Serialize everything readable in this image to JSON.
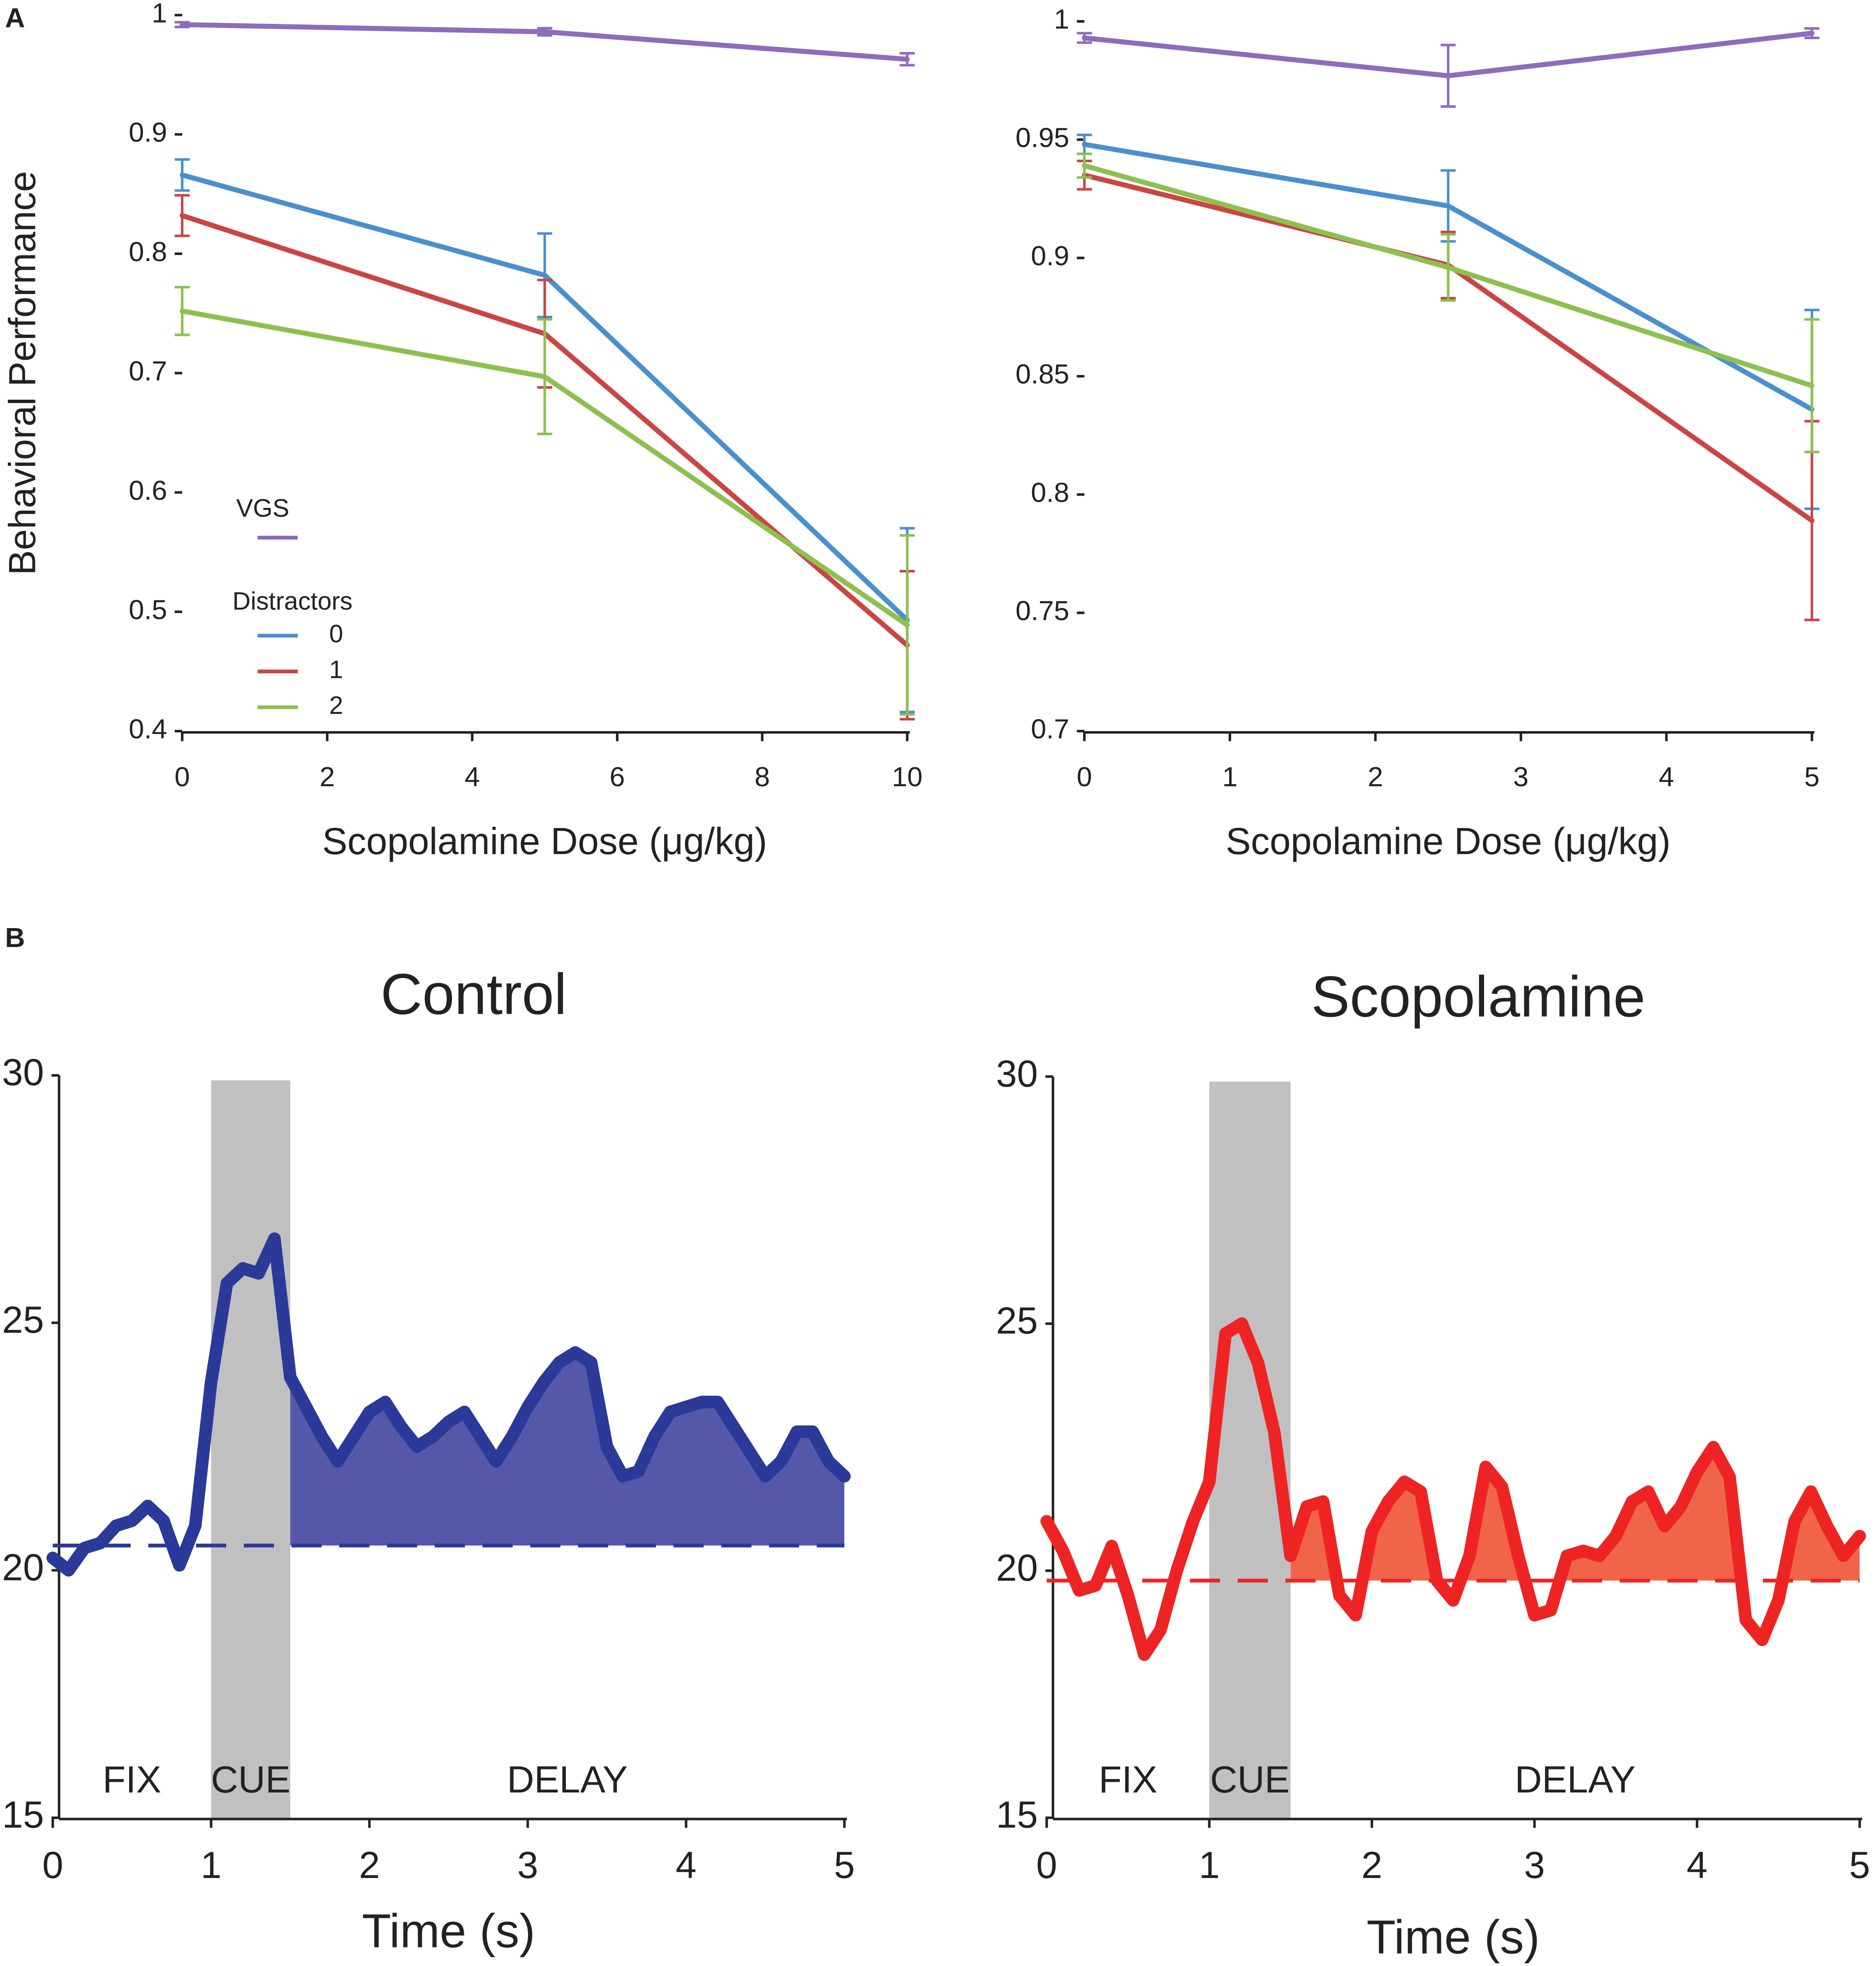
{
  "panel_labels": [
    "A",
    "B"
  ],
  "chart_data": [
    {
      "type": "line",
      "ylabel": "Behavioral Performance",
      "xlabel": "Scopolamine Dose (μg/kg)",
      "x": [
        0,
        5,
        10
      ],
      "xlim": [
        0,
        10
      ],
      "xticks": [
        0,
        2,
        4,
        6,
        8,
        10
      ],
      "ylim": [
        0.4,
        1
      ],
      "yticks": [
        0.4,
        0.5,
        0.6,
        0.7,
        0.8,
        0.9,
        1
      ],
      "legend": "lower left",
      "legend_title": "Distractors",
      "series": [
        {
          "name": "VGS",
          "color": "#8e6bbf",
          "values": [
            0.992,
            0.986,
            0.963
          ],
          "errors": [
            0.002,
            0.003,
            0.005
          ]
        },
        {
          "name": "0",
          "color": "#4a8fd0",
          "values": [
            0.866,
            0.782,
            0.493
          ],
          "errors": [
            0.013,
            0.035,
            0.077
          ]
        },
        {
          "name": "1",
          "color": "#cc4444",
          "values": [
            0.832,
            0.733,
            0.472
          ],
          "errors": [
            0.017,
            0.045,
            0.062
          ]
        },
        {
          "name": "2",
          "color": "#8dc04e",
          "values": [
            0.752,
            0.697,
            0.489
          ],
          "errors": [
            0.02,
            0.048,
            0.075
          ]
        }
      ]
    },
    {
      "type": "line",
      "xlabel": "Scopolamine Dose (μg/kg)",
      "x": [
        0,
        2.5,
        5
      ],
      "xlim": [
        0,
        5
      ],
      "xticks": [
        0,
        1,
        2,
        3,
        4,
        5
      ],
      "ylim": [
        0.7,
        1
      ],
      "yticks": [
        0.7,
        0.75,
        0.8,
        0.85,
        0.9,
        0.95,
        1
      ],
      "series": [
        {
          "color": "#8e6bbf",
          "values": [
            0.993,
            0.977,
            0.995
          ],
          "errors": [
            0.002,
            0.013,
            0.002
          ]
        },
        {
          "color": "#4a8fd0",
          "values": [
            0.948,
            0.922,
            0.836
          ],
          "errors": [
            0.004,
            0.015,
            0.042
          ]
        },
        {
          "color": "#cc4444",
          "values": [
            0.935,
            0.897,
            0.789
          ],
          "errors": [
            0.006,
            0.014,
            0.042
          ]
        },
        {
          "color": "#8dc04e",
          "values": [
            0.939,
            0.896,
            0.846
          ],
          "errors": [
            0.005,
            0.014,
            0.028
          ]
        }
      ]
    },
    {
      "type": "line",
      "title": "Control",
      "xlabel": "Time (s)",
      "xlim": [
        0,
        5
      ],
      "xticks": [
        0,
        1,
        2,
        3,
        4,
        5
      ],
      "ylim": [
        15,
        30
      ],
      "yticks": [
        15,
        20,
        25,
        30
      ],
      "shaded_region": [
        1,
        1.5
      ],
      "region_color": "#c0c0c0",
      "baseline": 20.5,
      "fill_color": "#5558a8",
      "annotations": [
        "FIX",
        "CUE",
        "DELAY"
      ],
      "x": [
        0,
        0.1,
        0.2,
        0.3,
        0.4,
        0.5,
        0.6,
        0.7,
        0.8,
        0.9,
        1,
        1.1,
        1.2,
        1.3,
        1.4,
        1.5,
        1.6,
        1.7,
        1.8,
        1.9,
        2,
        2.1,
        2.2,
        2.3,
        2.4,
        2.5,
        2.6,
        2.7,
        2.8,
        2.9,
        3,
        3.1,
        3.2,
        3.3,
        3.4,
        3.5,
        3.6,
        3.7,
        3.8,
        3.9,
        4,
        4.1,
        4.2,
        4.3,
        4.4,
        4.5,
        4.6,
        4.7,
        4.8,
        4.9,
        5
      ],
      "series": [
        {
          "color": "#2b3a98",
          "values": [
            20.25,
            20.0,
            20.45,
            20.55,
            20.9,
            21.0,
            21.3,
            21.0,
            20.1,
            20.9,
            23.8,
            25.8,
            26.1,
            26.0,
            26.7,
            23.9,
            23.3,
            22.7,
            22.2,
            22.7,
            23.2,
            23.4,
            22.9,
            22.5,
            22.7,
            23.0,
            23.2,
            22.7,
            22.2,
            22.7,
            23.3,
            23.8,
            24.2,
            24.4,
            24.2,
            22.5,
            21.9,
            22.0,
            22.7,
            23.2,
            23.3,
            23.4,
            23.4,
            22.9,
            22.4,
            21.9,
            22.2,
            22.8,
            22.8,
            22.2,
            21.9
          ]
        }
      ]
    },
    {
      "type": "line",
      "title": "Scopolamine",
      "xlabel": "Time (s)",
      "xlim": [
        0,
        5
      ],
      "xticks": [
        0,
        1,
        2,
        3,
        4,
        5
      ],
      "ylim": [
        15,
        30
      ],
      "yticks": [
        15,
        20,
        25,
        30
      ],
      "shaded_region": [
        1,
        1.5
      ],
      "region_color": "#c0c0c0",
      "baseline": 19.8,
      "fill_color": "#f0654a",
      "annotations": [
        "FIX",
        "CUE",
        "DELAY"
      ],
      "x": [
        0,
        0.1,
        0.2,
        0.3,
        0.4,
        0.5,
        0.6,
        0.7,
        0.8,
        0.9,
        1,
        1.1,
        1.2,
        1.3,
        1.4,
        1.5,
        1.6,
        1.7,
        1.8,
        1.9,
        2,
        2.1,
        2.2,
        2.3,
        2.4,
        2.5,
        2.6,
        2.7,
        2.8,
        2.9,
        3,
        3.1,
        3.2,
        3.3,
        3.4,
        3.5,
        3.6,
        3.7,
        3.8,
        3.9,
        4,
        4.1,
        4.2,
        4.3,
        4.4,
        4.5,
        4.6,
        4.7,
        4.8,
        4.9,
        5
      ],
      "series": [
        {
          "color": "#ee2424",
          "values": [
            21.0,
            20.4,
            19.6,
            19.7,
            20.5,
            19.5,
            18.3,
            18.8,
            20.0,
            21.0,
            21.8,
            24.8,
            25.0,
            24.2,
            22.8,
            20.3,
            21.3,
            21.4,
            19.5,
            19.1,
            20.8,
            21.4,
            21.8,
            21.6,
            19.8,
            19.4,
            20.3,
            22.1,
            21.7,
            20.3,
            19.1,
            19.2,
            20.3,
            20.4,
            20.3,
            20.7,
            21.4,
            21.6,
            20.9,
            21.3,
            22.0,
            22.5,
            21.9,
            19.0,
            18.6,
            19.4,
            21.0,
            21.6,
            20.9,
            20.3,
            20.7
          ]
        }
      ]
    }
  ]
}
